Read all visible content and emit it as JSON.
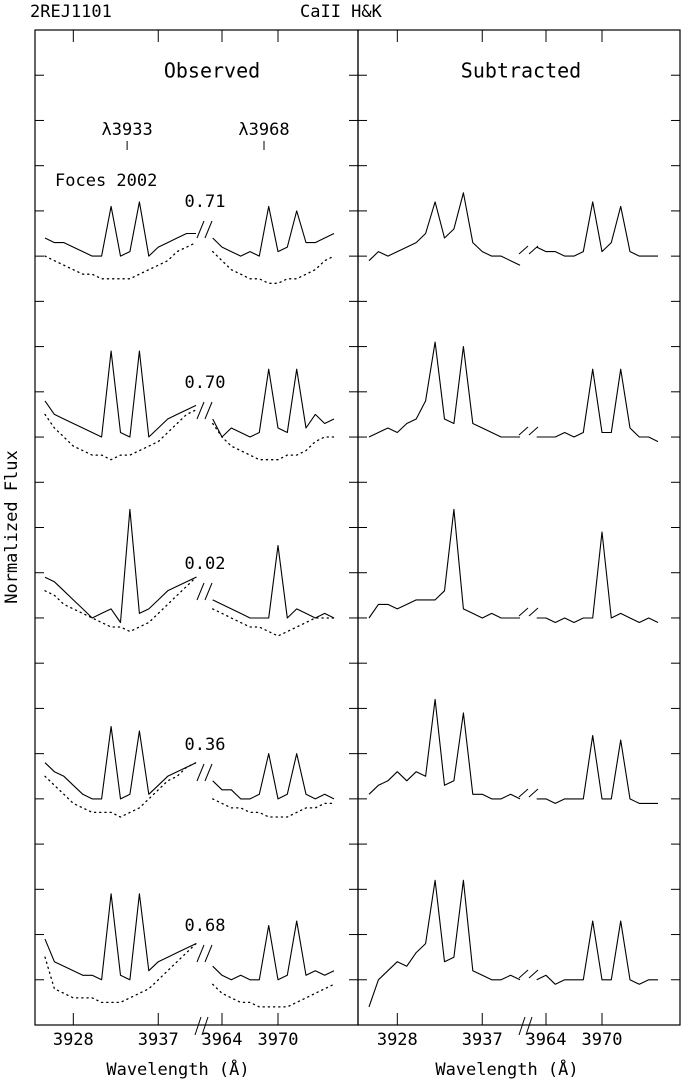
{
  "chart_data": {
    "type": "line",
    "title": "2REJ1101",
    "subtitle": "CaII H&K",
    "y_label": "Normalized Flux",
    "x_label": "Wavelength (Å)",
    "ylim": [
      0,
      22
    ],
    "yticks": [
      1,
      2,
      3,
      4,
      5,
      6,
      7,
      8,
      9,
      10,
      11,
      12,
      13,
      14,
      15,
      16,
      17,
      18,
      19,
      20,
      21
    ],
    "x": [
      3925,
      3926,
      3927,
      3928,
      3929,
      3930,
      3931,
      3932,
      3933,
      3934,
      3935,
      3936,
      3937,
      3938,
      3939,
      3940,
      3941,
      3963,
      3964,
      3965,
      3966,
      3967,
      3968,
      3969,
      3970,
      3971,
      3972,
      3973,
      3974,
      3975,
      3976
    ],
    "segments": [
      {
        "xlim": [
          3925,
          3941
        ],
        "xticks": [
          3928,
          3937
        ]
      },
      {
        "xlim": [
          3962.5,
          3976
        ],
        "xticks": [
          3964,
          3970
        ]
      }
    ],
    "annotations": [
      {
        "text": "λ3933",
        "x": 3933.7
      },
      {
        "text": "λ3968",
        "x": 3968.5
      }
    ],
    "note": "Foces 2002",
    "phases": [
      "0.71",
      "0.70",
      "0.02",
      "0.36",
      "0.68"
    ],
    "panels": [
      {
        "title": "Observed",
        "series": [
          {
            "color": "#000000",
            "dash": false,
            "values": [
              17.4,
              17.3,
              17.3,
              17.2,
              17.1,
              17.0,
              17.0,
              18.1,
              17.0,
              17.1,
              18.2,
              17.0,
              17.2,
              17.3,
              17.4,
              17.5,
              17.5,
              17.4,
              17.2,
              17.1,
              17.0,
              17.1,
              17.0,
              18.1,
              17.1,
              17.2,
              18.0,
              17.3,
              17.3,
              17.4,
              17.5
            ]
          },
          {
            "color": "#000000",
            "dash": true,
            "values": [
              17.0,
              16.9,
              16.8,
              16.7,
              16.6,
              16.6,
              16.5,
              16.5,
              16.5,
              16.5,
              16.6,
              16.7,
              16.8,
              16.9,
              17.1,
              17.2,
              17.3,
              17.1,
              16.9,
              16.7,
              16.6,
              16.5,
              16.5,
              16.4,
              16.4,
              16.5,
              16.5,
              16.6,
              16.7,
              16.9,
              17.0
            ]
          },
          {
            "color": "#000000",
            "dash": false,
            "values": [
              13.8,
              13.5,
              13.4,
              13.3,
              13.2,
              13.1,
              13.0,
              14.9,
              13.1,
              13.0,
              14.9,
              13.0,
              13.2,
              13.4,
              13.5,
              13.6,
              13.7,
              13.4,
              13.0,
              13.2,
              13.1,
              13.0,
              13.1,
              14.5,
              13.2,
              13.1,
              14.5,
              13.2,
              13.5,
              13.3,
              13.4
            ]
          },
          {
            "color": "#000000",
            "dash": true,
            "values": [
              13.5,
              13.2,
              13.0,
              12.8,
              12.7,
              12.6,
              12.6,
              12.5,
              12.6,
              12.6,
              12.7,
              12.8,
              12.9,
              13.1,
              13.3,
              13.5,
              13.6,
              13.3,
              13.0,
              12.8,
              12.7,
              12.6,
              12.5,
              12.5,
              12.5,
              12.6,
              12.6,
              12.7,
              12.9,
              13.0,
              13.0
            ]
          },
          {
            "color": "#000000",
            "dash": false,
            "values": [
              9.9,
              9.8,
              9.6,
              9.4,
              9.2,
              9.0,
              9.1,
              9.2,
              8.9,
              11.4,
              9.1,
              9.2,
              9.4,
              9.6,
              9.7,
              9.8,
              9.9,
              9.4,
              9.3,
              9.2,
              9.1,
              9.0,
              9.0,
              9.0,
              10.6,
              9.0,
              9.2,
              9.1,
              9.0,
              9.1,
              9.0
            ]
          },
          {
            "color": "#000000",
            "dash": true,
            "values": [
              9.6,
              9.5,
              9.3,
              9.2,
              9.1,
              9.0,
              8.9,
              8.8,
              8.8,
              8.7,
              8.8,
              8.9,
              9.1,
              9.3,
              9.5,
              9.7,
              9.9,
              9.2,
              9.1,
              9.0,
              8.9,
              8.8,
              8.8,
              8.7,
              8.6,
              8.7,
              8.8,
              8.9,
              9.0,
              9.0,
              9.0
            ]
          },
          {
            "color": "#000000",
            "dash": false,
            "values": [
              5.8,
              5.6,
              5.5,
              5.3,
              5.1,
              5.0,
              5.0,
              6.6,
              5.0,
              5.1,
              6.5,
              5.1,
              5.3,
              5.5,
              5.6,
              5.7,
              5.8,
              5.4,
              5.2,
              5.2,
              5.0,
              5.0,
              5.1,
              6.0,
              5.0,
              5.1,
              6.0,
              5.1,
              5.0,
              5.1,
              5.0
            ]
          },
          {
            "color": "#000000",
            "dash": true,
            "values": [
              5.5,
              5.3,
              5.1,
              4.9,
              4.8,
              4.7,
              4.7,
              4.7,
              4.6,
              4.7,
              4.8,
              5.0,
              5.2,
              5.4,
              5.5,
              5.7,
              5.8,
              5.0,
              4.9,
              4.8,
              4.8,
              4.7,
              4.7,
              4.6,
              4.6,
              4.6,
              4.7,
              4.8,
              4.8,
              4.9,
              4.9
            ]
          },
          {
            "color": "#000000",
            "dash": false,
            "values": [
              1.9,
              1.4,
              1.3,
              1.2,
              1.1,
              1.1,
              1.0,
              2.9,
              1.1,
              1.0,
              2.9,
              1.2,
              1.4,
              1.5,
              1.6,
              1.7,
              1.8,
              1.3,
              1.1,
              1.0,
              1.1,
              1.0,
              1.0,
              2.2,
              1.0,
              1.1,
              2.3,
              1.1,
              1.2,
              1.1,
              1.2
            ]
          },
          {
            "color": "#000000",
            "dash": true,
            "values": [
              1.5,
              0.8,
              0.7,
              0.6,
              0.6,
              0.6,
              0.5,
              0.5,
              0.5,
              0.6,
              0.7,
              0.8,
              1.0,
              1.2,
              1.4,
              1.6,
              1.8,
              0.9,
              0.7,
              0.6,
              0.5,
              0.5,
              0.4,
              0.4,
              0.4,
              0.4,
              0.5,
              0.6,
              0.7,
              0.8,
              0.9
            ]
          }
        ]
      },
      {
        "title": "Subtracted",
        "series": [
          {
            "color": "#000000",
            "dash": false,
            "values": [
              16.9,
              17.1,
              17.0,
              17.1,
              17.2,
              17.3,
              17.5,
              18.2,
              17.4,
              17.6,
              18.4,
              17.3,
              17.1,
              17.0,
              17.0,
              16.9,
              16.8,
              17.2,
              17.1,
              17.1,
              17.0,
              17.0,
              17.1,
              18.2,
              17.1,
              17.3,
              18.1,
              17.1,
              17.0,
              17.0,
              17.0
            ]
          },
          {
            "color": "#000000",
            "dash": false,
            "values": [
              13.0,
              13.1,
              13.2,
              13.1,
              13.3,
              13.4,
              13.8,
              15.1,
              13.4,
              13.3,
              15.0,
              13.3,
              13.2,
              13.1,
              13.0,
              13.0,
              13.0,
              13.0,
              13.0,
              13.0,
              13.1,
              13.0,
              13.1,
              14.5,
              13.1,
              13.1,
              14.5,
              13.2,
              13.0,
              13.0,
              12.9
            ]
          },
          {
            "color": "#000000",
            "dash": false,
            "values": [
              9.0,
              9.3,
              9.3,
              9.2,
              9.3,
              9.4,
              9.4,
              9.4,
              9.6,
              11.4,
              9.2,
              9.1,
              9.0,
              9.1,
              9.0,
              9.0,
              9.0,
              9.0,
              9.0,
              8.9,
              9.0,
              8.9,
              9.0,
              9.0,
              10.9,
              9.0,
              9.1,
              9.0,
              8.9,
              9.0,
              8.9
            ]
          },
          {
            "color": "#000000",
            "dash": false,
            "values": [
              5.1,
              5.3,
              5.4,
              5.6,
              5.4,
              5.6,
              5.5,
              7.2,
              5.3,
              5.4,
              6.9,
              5.1,
              5.1,
              5.0,
              5.0,
              5.1,
              5.0,
              5.0,
              5.0,
              4.9,
              5.0,
              5.0,
              5.0,
              6.4,
              5.0,
              5.0,
              6.3,
              5.0,
              4.9,
              4.9,
              4.9
            ]
          },
          {
            "color": "#000000",
            "dash": false,
            "values": [
              0.4,
              1.0,
              1.2,
              1.4,
              1.3,
              1.6,
              1.8,
              3.2,
              1.4,
              1.5,
              3.2,
              1.2,
              1.1,
              1.0,
              1.0,
              1.1,
              1.0,
              1.0,
              1.1,
              0.9,
              1.0,
              1.0,
              1.0,
              2.3,
              1.0,
              1.0,
              2.3,
              1.0,
              0.9,
              1.0,
              1.0
            ]
          }
        ]
      }
    ]
  }
}
